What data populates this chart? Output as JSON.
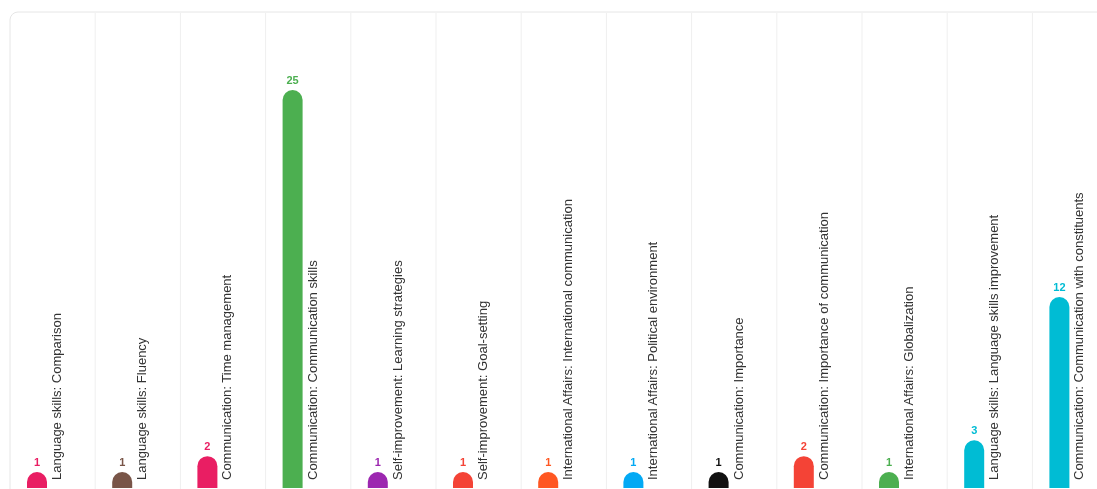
{
  "chart_data": {
    "type": "bar",
    "categories": [
      "Language skills: Comparison",
      "Language skills: Fluency",
      "Communication: Time management",
      "Communication: Communication skills",
      "Self-improvement: Learning strategies",
      "Self-improvement: Goal-setting",
      "International Affairs: International communication",
      "International Affairs: Political environment",
      "Communication: Importance",
      "Communication: Importance of communication",
      "International Affairs: Globalization",
      "Language skills: Language skills improvement",
      "Communication: Communication with constituents"
    ],
    "values": [
      1,
      1,
      2,
      25,
      1,
      1,
      1,
      1,
      1,
      2,
      1,
      3,
      12
    ],
    "colors": [
      "#e91e63",
      "#795548",
      "#e91e63",
      "#4caf50",
      "#9c27b0",
      "#f44336",
      "#ff5722",
      "#03a9f4",
      "#111111",
      "#f44336",
      "#4caf50",
      "#00bcd4",
      "#00bcd4"
    ],
    "data_labels": true,
    "grid": "x"
  }
}
